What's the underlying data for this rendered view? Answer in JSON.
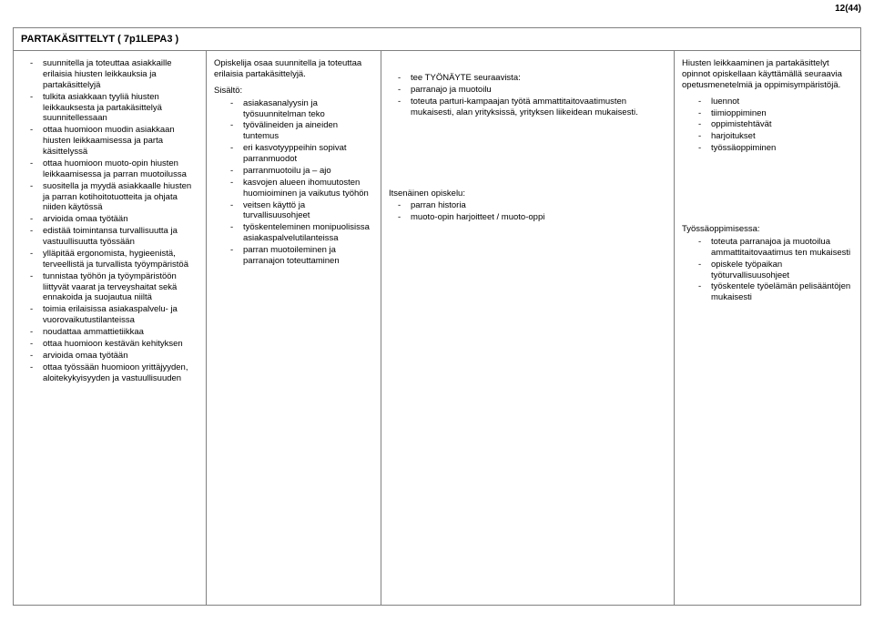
{
  "page_number": "12(44)",
  "title": "PARTAKÄSITTELYT ( 7p1LEPA3 )",
  "colors": {
    "border": "#808080",
    "text": "#000000",
    "bg": "#ffffff"
  },
  "col1": {
    "items": [
      "suunnitella ja toteuttaa asiakkaille erilaisia hiusten leikkauksia ja partakäsittelyjä",
      "tulkita asiakkaan tyyliä hiusten leikkauksesta ja partakäsittelyä suunnitellessaan",
      "ottaa huomioon muodin asiakkaan hiusten leikkaamisessa ja parta käsittelyssä",
      "ottaa huomioon muoto-opin hiusten leikkaamisessa ja parran muotoilussa",
      "suositella ja myydä asiakkaalle hiusten ja parran kotihoitotuotteita ja ohjata niiden käytössä",
      "arvioida omaa työtään",
      "edistää toimintansa turvallisuutta ja vastuullisuutta työssään",
      "ylläpitää ergonomista, hygieenistä, terveellistä ja turvallista työympäristöä",
      "tunnistaa työhön ja työympäristöön liittyvät vaarat ja terveyshaitat sekä ennakoida ja suojautua niiltä",
      "toimia erilaisissa asiakaspalvelu- ja vuorovaikutustilanteissa",
      "noudattaa ammattietiikkaa",
      "ottaa huomioon kestävän kehityksen",
      "arvioida omaa työtään",
      "ottaa työssään huomioon yrittäjyyden, aloitekykyisyyden ja vastuullisuuden"
    ]
  },
  "col2": {
    "lead": "Opiskelija osaa suunnitella ja toteuttaa erilaisia partakäsittelyjä.",
    "label": "Sisältö:",
    "items": [
      "asiakasanalyysin ja työsuunnitelman teko",
      "työvälineiden ja aineiden tuntemus",
      "eri kasvotyyppeihin sopivat parranmuodot",
      "parranmuotoilu ja – ajo",
      "kasvojen alueen ihomuutosten huomioiminen ja vaikutus työhön",
      "veitsen käyttö ja turvallisuusohjeet",
      "työskenteleminen monipuolisissa asiakaspalvelutilanteissa",
      "parran muotoileminen ja parranajon toteuttaminen"
    ]
  },
  "col3": {
    "block1_items": [
      "tee TYÖNÄYTE seuraavista:",
      "parranajo ja muotoilu",
      "toteuta parturi-kampaajan työtä ammattitaitovaatimusten mukaisesti, alan yrityksissä, yrityksen liikeidean mukaisesti."
    ],
    "block2_label": "Itsenäinen opiskelu:",
    "block2_items": [
      "parran historia",
      "muoto-opin harjoitteet / muoto-oppi"
    ]
  },
  "col4": {
    "lead": "Hiusten leikkaaminen ja partakäsittelyt opinnot opiskellaan käyttämällä seuraavia opetusmenetelmiä ja oppimisympäristöjä.",
    "items1": [
      "luennot",
      "tiimioppiminen",
      "oppimistehtävät",
      "harjoitukset",
      "työssäoppiminen"
    ],
    "label2": "Työssäoppimisessa:",
    "items2": [
      "toteuta parranajoa ja muotoilua ammattitaitovaatimus ten mukaisesti",
      "opiskele työpaikan työturvallisuusohjeet",
      "työskentele työelämän pelisääntöjen mukaisesti"
    ]
  }
}
